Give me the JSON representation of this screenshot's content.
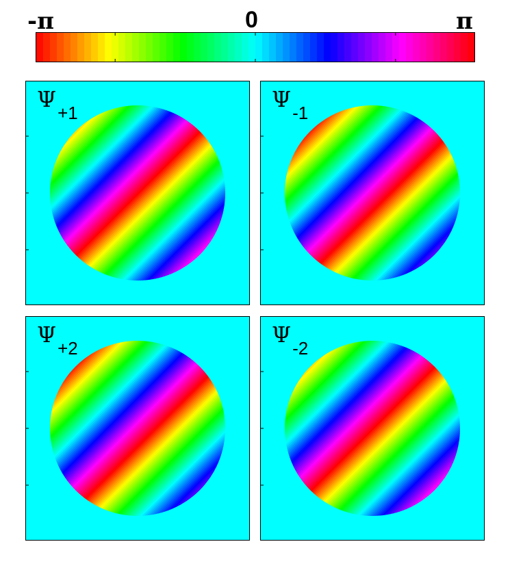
{
  "chart_data": {
    "type": "heatmap",
    "colorbar": {
      "min_label": "-π",
      "mid_label": "0",
      "max_label": "π",
      "range": [
        -3.14159,
        3.14159
      ],
      "colormap": "hsv"
    },
    "panels": [
      {
        "label_symbol": "Ψ",
        "label_subscript": "+1",
        "phase_offset": -3.14159,
        "background_phase": 0.0,
        "stripe_orientation": "diagonal"
      },
      {
        "label_symbol": "Ψ",
        "label_subscript": "-1",
        "phase_offset": 2.4,
        "background_phase": 0.0,
        "stripe_orientation": "diagonal"
      },
      {
        "label_symbol": "Ψ",
        "label_subscript": "+2",
        "phase_offset": 2.4,
        "background_phase": 0.0,
        "stripe_orientation": "diagonal"
      },
      {
        "label_symbol": "Ψ",
        "label_subscript": "-2",
        "phase_offset": -3.14159,
        "background_phase": 0.0,
        "stripe_orientation": "diagonal"
      }
    ]
  }
}
